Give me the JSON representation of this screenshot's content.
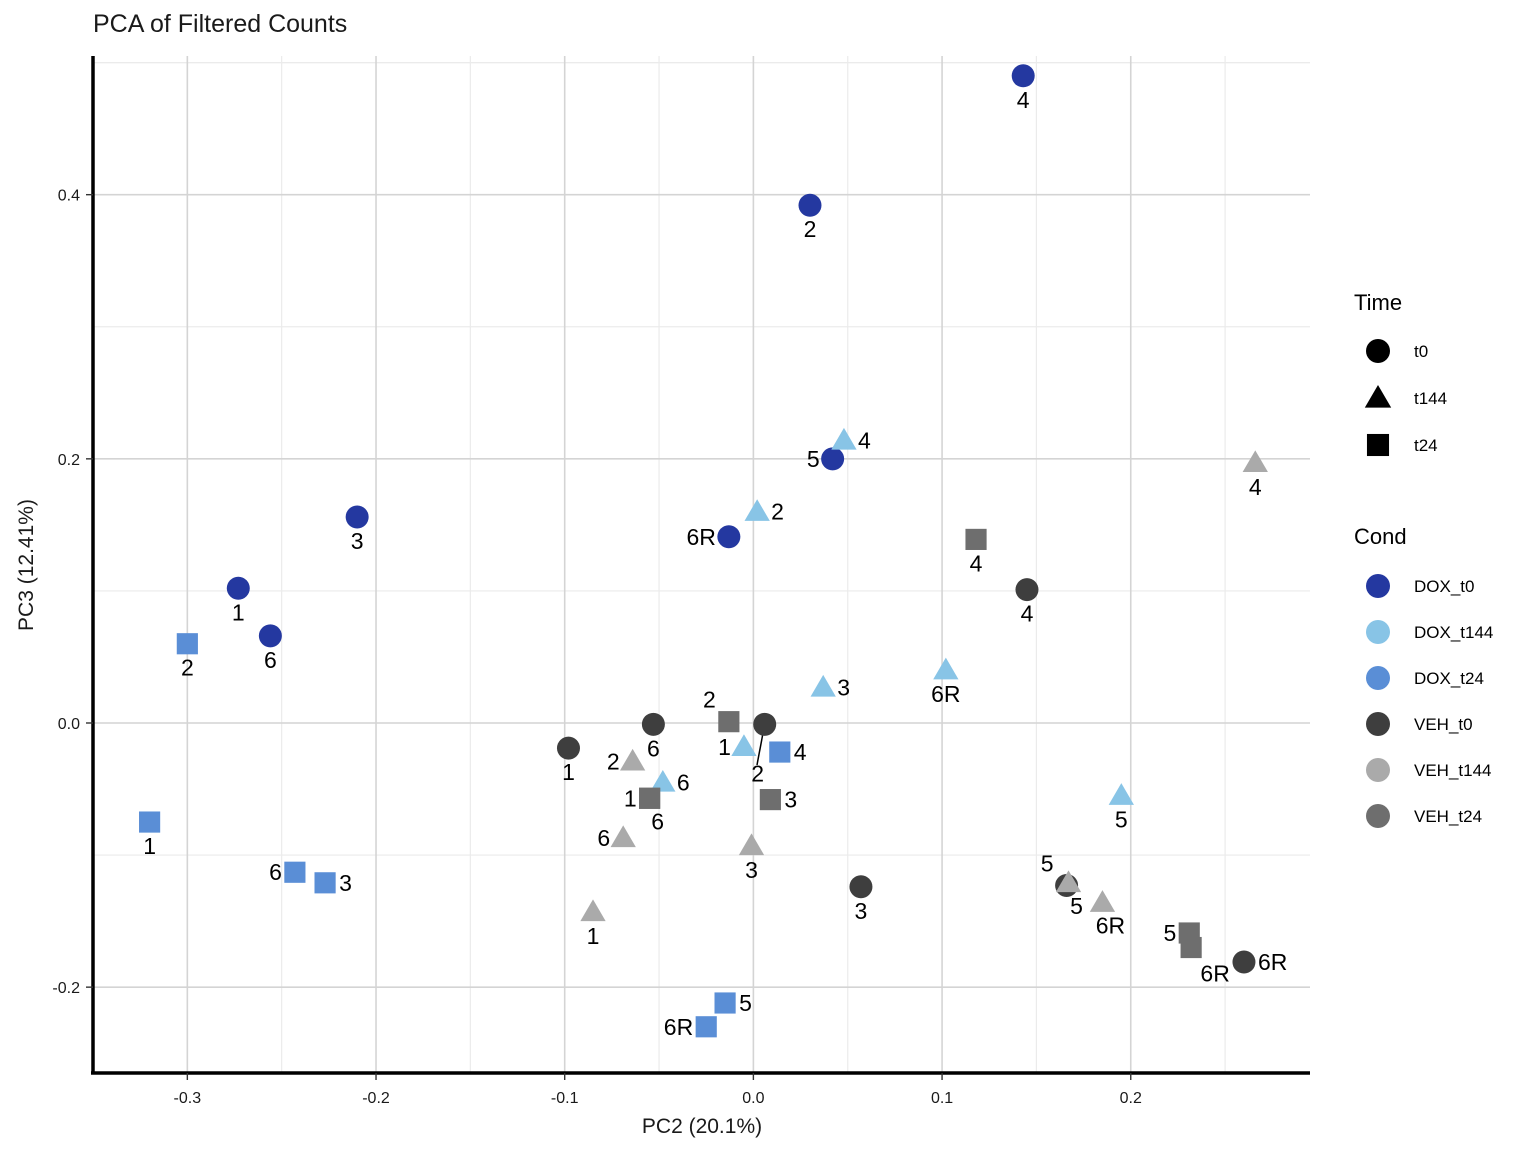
{
  "chart_data": {
    "type": "scatter",
    "title": "PCA of Filtered Counts",
    "xlabel": "PC2 (20.1%)",
    "ylabel": "PC3 (12.41%)",
    "xlim": [
      -0.35,
      0.295
    ],
    "ylim": [
      -0.265,
      0.505
    ],
    "xticks": [
      -0.3,
      -0.2,
      -0.1,
      0.0,
      0.1,
      0.2
    ],
    "xtick_labels": [
      "-0.3",
      "-0.2",
      "-0.1",
      "0.0",
      "0.1",
      "0.2"
    ],
    "yticks": [
      -0.2,
      0.0,
      0.2,
      0.4
    ],
    "ytick_labels": [
      "-0.2",
      "0.0",
      "0.2",
      "0.4"
    ],
    "grid": true,
    "legend_position": "right",
    "legend_time_title": "Time",
    "legend_cond_title": "Cond",
    "time_legend": [
      {
        "label": "t0",
        "shape": "circle"
      },
      {
        "label": "t144",
        "shape": "triangle"
      },
      {
        "label": "t24",
        "shape": "square"
      }
    ],
    "cond_legend": [
      {
        "label": "DOX_t0",
        "color": "#2438A0"
      },
      {
        "label": "DOX_t144",
        "color": "#88C4E6"
      },
      {
        "label": "DOX_t24",
        "color": "#5A8ED6"
      },
      {
        "label": "VEH_t0",
        "color": "#3E3E3E"
      },
      {
        "label": "VEH_t144",
        "color": "#AAAAAA"
      },
      {
        "label": "VEH_t24",
        "color": "#6E6E6E"
      }
    ],
    "points": [
      {
        "x": 0.143,
        "y": 0.49,
        "cond": "DOX_t0",
        "shape": "circle",
        "label": "4",
        "lpos": "below"
      },
      {
        "x": 0.03,
        "y": 0.392,
        "cond": "DOX_t0",
        "shape": "circle",
        "label": "2",
        "lpos": "below"
      },
      {
        "x": 0.042,
        "y": 0.2,
        "cond": "DOX_t0",
        "shape": "circle",
        "label": "5",
        "lpos": "left"
      },
      {
        "x": -0.013,
        "y": 0.141,
        "cond": "DOX_t0",
        "shape": "circle",
        "label": "6R",
        "lpos": "left"
      },
      {
        "x": -0.21,
        "y": 0.156,
        "cond": "DOX_t0",
        "shape": "circle",
        "label": "3",
        "lpos": "below"
      },
      {
        "x": -0.273,
        "y": 0.102,
        "cond": "DOX_t0",
        "shape": "circle",
        "label": "1",
        "lpos": "below"
      },
      {
        "x": -0.256,
        "y": 0.066,
        "cond": "DOX_t0",
        "shape": "circle",
        "label": "6",
        "lpos": "below"
      },
      {
        "x": 0.048,
        "y": 0.214,
        "cond": "DOX_t144",
        "shape": "triangle",
        "label": "4",
        "lpos": "right"
      },
      {
        "x": 0.002,
        "y": 0.16,
        "cond": "DOX_t144",
        "shape": "triangle",
        "label": "2",
        "lpos": "right"
      },
      {
        "x": 0.102,
        "y": 0.04,
        "cond": "DOX_t144",
        "shape": "triangle",
        "label": "6R",
        "lpos": "below"
      },
      {
        "x": 0.037,
        "y": 0.027,
        "cond": "DOX_t144",
        "shape": "triangle",
        "label": "3",
        "lpos": "right"
      },
      {
        "x": -0.005,
        "y": -0.018,
        "cond": "DOX_t144",
        "shape": "triangle",
        "label": "1",
        "lpos": "left"
      },
      {
        "x": -0.048,
        "y": -0.045,
        "cond": "DOX_t144",
        "shape": "triangle",
        "label": "6",
        "lpos": "right"
      },
      {
        "x": 0.195,
        "y": -0.055,
        "cond": "DOX_t144",
        "shape": "triangle",
        "label": "5",
        "lpos": "below"
      },
      {
        "x": -0.3,
        "y": 0.06,
        "cond": "DOX_t24",
        "shape": "square",
        "label": "2",
        "lpos": "below"
      },
      {
        "x": -0.32,
        "y": -0.075,
        "cond": "DOX_t24",
        "shape": "square",
        "label": "1",
        "lpos": "below"
      },
      {
        "x": -0.243,
        "y": -0.113,
        "cond": "DOX_t24",
        "shape": "square",
        "label": "6",
        "lpos": "left"
      },
      {
        "x": -0.227,
        "y": -0.121,
        "cond": "DOX_t24",
        "shape": "square",
        "label": "3",
        "lpos": "right"
      },
      {
        "x": 0.014,
        "y": -0.022,
        "cond": "DOX_t24",
        "shape": "square",
        "label": "4",
        "lpos": "right"
      },
      {
        "x": -0.015,
        "y": -0.212,
        "cond": "DOX_t24",
        "shape": "square",
        "label": "5",
        "lpos": "right"
      },
      {
        "x": -0.025,
        "y": -0.23,
        "cond": "DOX_t24",
        "shape": "square",
        "label": "6R",
        "lpos": "left"
      },
      {
        "x": 0.145,
        "y": 0.101,
        "cond": "VEH_t0",
        "shape": "circle",
        "label": "4",
        "lpos": "below"
      },
      {
        "x": -0.053,
        "y": -0.001,
        "cond": "VEH_t0",
        "shape": "circle",
        "label": "6",
        "lpos": "below"
      },
      {
        "x": 0.006,
        "y": -0.001,
        "cond": "VEH_t0",
        "shape": "circle",
        "label": "2",
        "lpos": "below-far"
      },
      {
        "x": -0.098,
        "y": -0.019,
        "cond": "VEH_t0",
        "shape": "circle",
        "label": "1",
        "lpos": "below"
      },
      {
        "x": 0.057,
        "y": -0.124,
        "cond": "VEH_t0",
        "shape": "circle",
        "label": "3",
        "lpos": "below"
      },
      {
        "x": 0.166,
        "y": -0.123,
        "cond": "VEH_t0",
        "shape": "circle",
        "label": "5",
        "lpos": "upleft"
      },
      {
        "x": 0.26,
        "y": -0.181,
        "cond": "VEH_t0",
        "shape": "circle",
        "label": "6R",
        "lpos": "right"
      },
      {
        "x": 0.266,
        "y": 0.197,
        "cond": "VEH_t144",
        "shape": "triangle",
        "label": "4",
        "lpos": "below"
      },
      {
        "x": -0.064,
        "y": -0.029,
        "cond": "VEH_t144",
        "shape": "triangle",
        "label": "2",
        "lpos": "left"
      },
      {
        "x": -0.069,
        "y": -0.087,
        "cond": "VEH_t144",
        "shape": "triangle",
        "label": "6",
        "lpos": "left"
      },
      {
        "x": -0.001,
        "y": -0.093,
        "cond": "VEH_t144",
        "shape": "triangle",
        "label": "3",
        "lpos": "below"
      },
      {
        "x": -0.085,
        "y": -0.143,
        "cond": "VEH_t144",
        "shape": "triangle",
        "label": "1",
        "lpos": "below"
      },
      {
        "x": 0.167,
        "y": -0.121,
        "cond": "VEH_t144",
        "shape": "triangle",
        "label": "5",
        "lpos": "below-right"
      },
      {
        "x": 0.185,
        "y": -0.136,
        "cond": "VEH_t144",
        "shape": "triangle",
        "label": "6R",
        "lpos": "below-right"
      },
      {
        "x": 0.118,
        "y": 0.139,
        "cond": "VEH_t24",
        "shape": "square",
        "label": "4",
        "lpos": "below"
      },
      {
        "x": -0.013,
        "y": 0.001,
        "cond": "VEH_t24",
        "shape": "square",
        "label": "2",
        "lpos": "upleft"
      },
      {
        "x": -0.055,
        "y": -0.057,
        "cond": "VEH_t24",
        "shape": "square",
        "label": "1",
        "lpos": "left"
      },
      {
        "x": -0.055,
        "y": -0.057,
        "cond": "VEH_t24",
        "shape": "square",
        "label": "6",
        "lpos": "below-right"
      },
      {
        "x": 0.009,
        "y": -0.058,
        "cond": "VEH_t24",
        "shape": "square",
        "label": "3",
        "lpos": "right"
      },
      {
        "x": 0.231,
        "y": -0.159,
        "cond": "VEH_t24",
        "shape": "square",
        "label": "5",
        "lpos": "left"
      },
      {
        "x": 0.232,
        "y": -0.17,
        "cond": "VEH_t24",
        "shape": "square",
        "label": "6R",
        "lpos": "below-left"
      }
    ]
  }
}
